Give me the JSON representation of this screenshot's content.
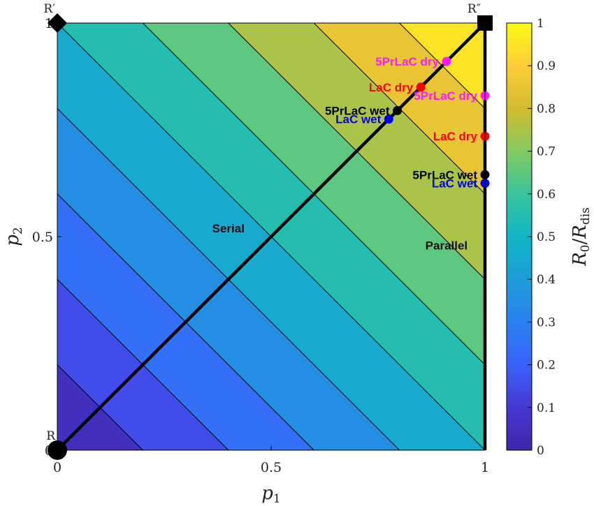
{
  "chart_data": {
    "type": "heatmap",
    "title": "",
    "xlabel": "p1",
    "ylabel": "p2",
    "xlim": [
      0,
      1
    ],
    "ylim": [
      0,
      1
    ],
    "x_ticks": [
      "0",
      "0.5",
      "1"
    ],
    "y_ticks": [
      "0",
      "0.5",
      "1"
    ],
    "colorbar": {
      "label": "R0/Rdis",
      "range": [
        0,
        1
      ],
      "ticks": [
        "0",
        "0.1",
        "0.2",
        "0.3",
        "0.4",
        "0.5",
        "0.6",
        "0.7",
        "0.8",
        "0.9",
        "1"
      ]
    },
    "contour_levels": [
      0.1,
      0.2,
      0.3,
      0.4,
      0.5,
      0.6,
      0.7,
      0.8,
      0.9
    ],
    "field": "R0/Rdis = (p1 + p2) / 2",
    "corners": [
      {
        "label": "R",
        "x": 0,
        "y": 0,
        "marker": "circle"
      },
      {
        "label": "R′",
        "x": 0,
        "y": 1,
        "marker": "diamond"
      },
      {
        "label": "R″",
        "x": 1,
        "y": 1,
        "marker": "square"
      }
    ],
    "paths": [
      {
        "name": "Serial",
        "points": [
          [
            0,
            0
          ],
          [
            1,
            1
          ]
        ]
      },
      {
        "name": "Parallel",
        "points": [
          [
            1,
            0
          ],
          [
            1,
            1
          ]
        ]
      }
    ],
    "path_labels": [
      {
        "text": "Serial",
        "x": 0.4,
        "y": 0.51
      },
      {
        "text": "Parallel",
        "x": 0.91,
        "y": 0.47
      }
    ],
    "points": [
      {
        "label": "5PrLaC dry",
        "x": 0.91,
        "y": 0.91,
        "color": "#ff1aff",
        "side": "left"
      },
      {
        "label": "LaC dry",
        "x": 0.85,
        "y": 0.85,
        "color": "#ff0000",
        "side": "left"
      },
      {
        "label": "5PrLaC wet",
        "x": 0.795,
        "y": 0.795,
        "color": "#000000",
        "side": "left"
      },
      {
        "label": "LaC wet",
        "x": 0.775,
        "y": 0.775,
        "color": "#0000ee",
        "side": "left"
      },
      {
        "label": "5PrLaC dry",
        "x": 1.0,
        "y": 0.83,
        "color": "#ff1aff",
        "side": "left"
      },
      {
        "label": "LaC dry",
        "x": 1.0,
        "y": 0.735,
        "color": "#ff0000",
        "side": "left"
      },
      {
        "label": "5PrLaC wet",
        "x": 1.0,
        "y": 0.645,
        "color": "#000000",
        "side": "left"
      },
      {
        "label": "LaC wet",
        "x": 1.0,
        "y": 0.625,
        "color": "#0000ee",
        "side": "left"
      }
    ]
  }
}
